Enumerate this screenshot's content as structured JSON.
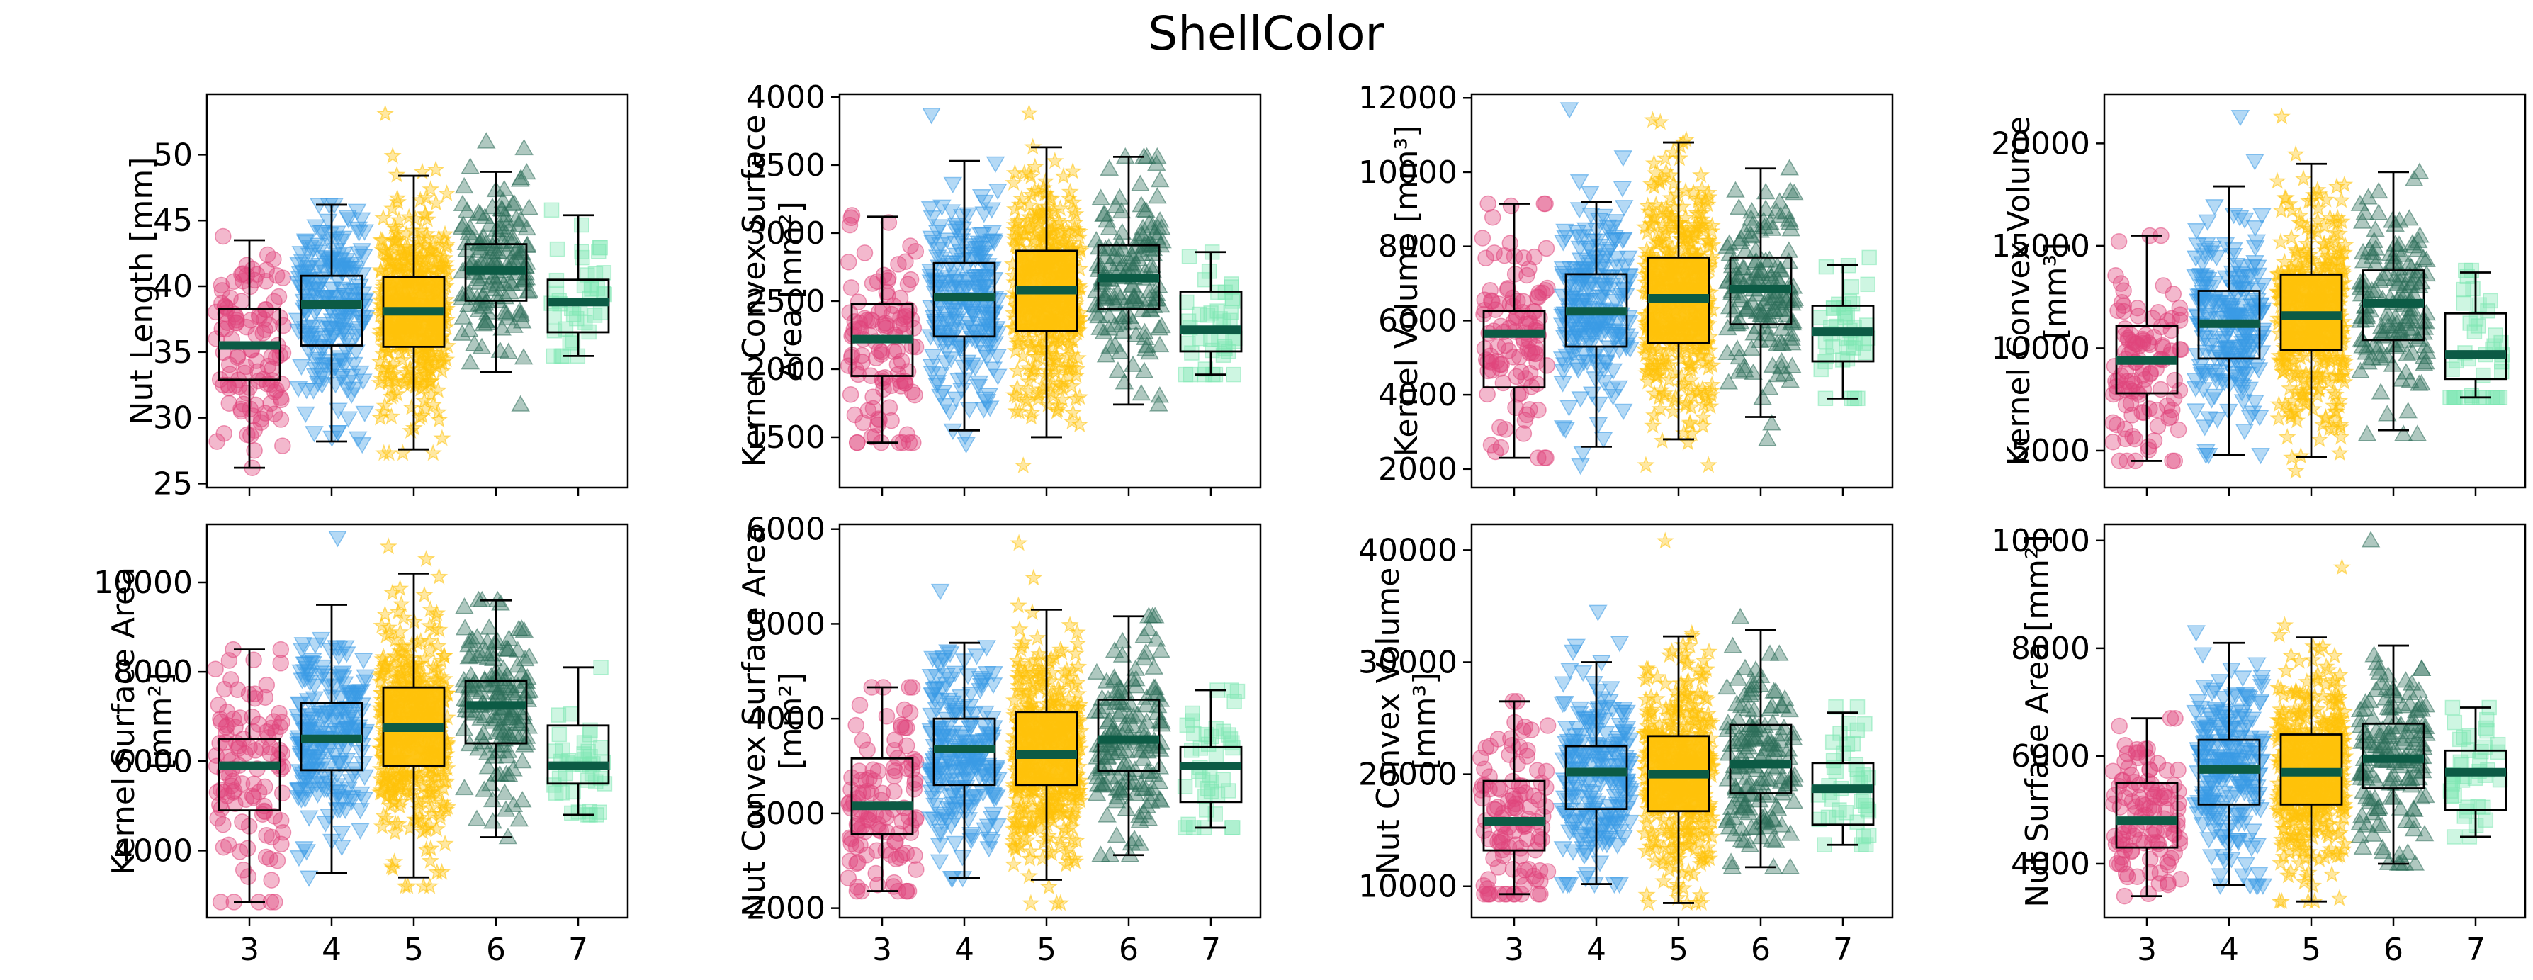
{
  "figure": {
    "title": "ShellColor"
  },
  "chart_data": {
    "type": "box",
    "categories": [
      "3",
      "4",
      "5",
      "6",
      "7"
    ],
    "group_styles": [
      {
        "category": "3",
        "marker": "circle",
        "color": "#e0457b"
      },
      {
        "category": "4",
        "marker": "triangle-down",
        "color": "#3a9ae6"
      },
      {
        "category": "5",
        "marker": "star",
        "color": "#ffc20a"
      },
      {
        "category": "6",
        "marker": "triangle-up",
        "color": "#2e6e5a"
      },
      {
        "category": "7",
        "marker": "square",
        "color": "#7ee8b2"
      }
    ],
    "median_color": "#0c5b45",
    "panels": [
      {
        "id": "nut-length",
        "ylabel_lines": [
          "Nut Length [mm]"
        ],
        "ylim": [
          24.7,
          54.6
        ],
        "yticks": [
          25,
          30,
          35,
          40,
          45,
          50
        ],
        "groups": [
          {
            "n": 110,
            "q1": 32.9,
            "median": 35.5,
            "q3": 38.3,
            "low": 26.2,
            "high": 43.5,
            "pmin": 26.2,
            "pmax": 43.8
          },
          {
            "n": 220,
            "q1": 35.5,
            "median": 38.6,
            "q3": 40.8,
            "low": 28.2,
            "high": 46.2,
            "pmin": 28.0,
            "pmax": 46.2
          },
          {
            "n": 420,
            "q1": 35.4,
            "median": 38.1,
            "q3": 40.7,
            "low": 27.6,
            "high": 48.4,
            "pmin": 27.3,
            "pmax": 53.1
          },
          {
            "n": 150,
            "q1": 38.9,
            "median": 41.2,
            "q3": 43.2,
            "low": 33.5,
            "high": 48.7,
            "pmin": 31.0,
            "pmax": 51.0
          },
          {
            "n": 40,
            "q1": 36.5,
            "median": 38.8,
            "q3": 40.5,
            "low": 34.7,
            "high": 45.4,
            "pmin": 34.7,
            "pmax": 45.8
          }
        ]
      },
      {
        "id": "kernel-convex-surface-area",
        "ylabel_lines": [
          "Kernel Convex Surface",
          "Area [mm²]"
        ],
        "ylim": [
          1130,
          4020
        ],
        "yticks": [
          1500,
          2000,
          2500,
          3000,
          3500,
          4000
        ],
        "groups": [
          {
            "n": 110,
            "q1": 1950,
            "median": 2220,
            "q3": 2480,
            "low": 1460,
            "high": 3120,
            "pmin": 1460,
            "pmax": 3130
          },
          {
            "n": 220,
            "q1": 2240,
            "median": 2530,
            "q3": 2780,
            "low": 1550,
            "high": 3530,
            "pmin": 1450,
            "pmax": 3870
          },
          {
            "n": 420,
            "q1": 2280,
            "median": 2580,
            "q3": 2870,
            "low": 1500,
            "high": 3630,
            "pmin": 1290,
            "pmax": 3880
          },
          {
            "n": 150,
            "q1": 2440,
            "median": 2670,
            "q3": 2910,
            "low": 1740,
            "high": 3560,
            "pmin": 1740,
            "pmax": 3560
          },
          {
            "n": 40,
            "q1": 2130,
            "median": 2290,
            "q3": 2570,
            "low": 1960,
            "high": 2860,
            "pmin": 1960,
            "pmax": 2860
          }
        ]
      },
      {
        "id": "kernel-volume",
        "ylabel_lines": [
          "Kernel Volume [mm³]"
        ],
        "ylim": [
          1500,
          12100
        ],
        "yticks": [
          2000,
          4000,
          6000,
          8000,
          10000,
          12000
        ],
        "groups": [
          {
            "n": 110,
            "q1": 4200,
            "median": 5650,
            "q3": 6250,
            "low": 2300,
            "high": 9150,
            "pmin": 2300,
            "pmax": 9150
          },
          {
            "n": 220,
            "q1": 5300,
            "median": 6250,
            "q3": 7250,
            "low": 2600,
            "high": 9200,
            "pmin": 2100,
            "pmax": 11700
          },
          {
            "n": 420,
            "q1": 5400,
            "median": 6600,
            "q3": 7700,
            "low": 2800,
            "high": 10800,
            "pmin": 2100,
            "pmax": 11400
          },
          {
            "n": 150,
            "q1": 5900,
            "median": 6850,
            "q3": 7700,
            "low": 3400,
            "high": 10100,
            "pmin": 2800,
            "pmax": 10100
          },
          {
            "n": 40,
            "q1": 4900,
            "median": 5700,
            "q3": 6400,
            "low": 3900,
            "high": 7500,
            "pmin": 3900,
            "pmax": 7700
          }
        ]
      },
      {
        "id": "kernel-convex-volume",
        "ylabel_lines": [
          "Kernel Convex Volume",
          "[mm³]"
        ],
        "ylim": [
          3200,
          22400
        ],
        "yticks": [
          5000,
          10000,
          15000,
          20000
        ],
        "groups": [
          {
            "n": 110,
            "q1": 7800,
            "median": 9400,
            "q3": 11100,
            "low": 4500,
            "high": 15500,
            "pmin": 4500,
            "pmax": 15500
          },
          {
            "n": 220,
            "q1": 9500,
            "median": 11200,
            "q3": 12800,
            "low": 4800,
            "high": 17900,
            "pmin": 4800,
            "pmax": 21300
          },
          {
            "n": 420,
            "q1": 9900,
            "median": 11600,
            "q3": 13600,
            "low": 4700,
            "high": 19000,
            "pmin": 4000,
            "pmax": 21300
          },
          {
            "n": 150,
            "q1": 10400,
            "median": 12200,
            "q3": 13800,
            "low": 6000,
            "high": 18600,
            "pmin": 5800,
            "pmax": 18600
          },
          {
            "n": 40,
            "q1": 8500,
            "median": 9700,
            "q3": 11700,
            "low": 7600,
            "high": 13700,
            "pmin": 7600,
            "pmax": 13800
          }
        ]
      },
      {
        "id": "kernel-surface-area",
        "ylabel_lines": [
          "Kernel Surface Area",
          "[mm²]"
        ],
        "ylim": [
          2500,
          11300
        ],
        "yticks": [
          4000,
          6000,
          8000,
          10000
        ],
        "groups": [
          {
            "n": 110,
            "q1": 4900,
            "median": 5900,
            "q3": 6500,
            "low": 2850,
            "high": 8500,
            "pmin": 2850,
            "pmax": 8500
          },
          {
            "n": 220,
            "q1": 5800,
            "median": 6500,
            "q3": 7300,
            "low": 3500,
            "high": 9500,
            "pmin": 3400,
            "pmax": 11000
          },
          {
            "n": 420,
            "q1": 5900,
            "median": 6750,
            "q3": 7650,
            "low": 3400,
            "high": 10200,
            "pmin": 3200,
            "pmax": 10800
          },
          {
            "n": 150,
            "q1": 6400,
            "median": 7250,
            "q3": 7800,
            "low": 4300,
            "high": 9600,
            "pmin": 4300,
            "pmax": 9600
          },
          {
            "n": 40,
            "q1": 5500,
            "median": 5900,
            "q3": 6800,
            "low": 4800,
            "high": 8100,
            "pmin": 4800,
            "pmax": 8100
          }
        ]
      },
      {
        "id": "nut-convex-surface-area",
        "ylabel_lines": [
          "Nut Convex Surface Area",
          "[mm²]"
        ],
        "ylim": [
          1900,
          6050
        ],
        "yticks": [
          2000,
          3000,
          4000,
          5000,
          6000
        ],
        "groups": [
          {
            "n": 110,
            "q1": 2780,
            "median": 3080,
            "q3": 3580,
            "low": 2180,
            "high": 4330,
            "pmin": 2180,
            "pmax": 4330
          },
          {
            "n": 220,
            "q1": 3300,
            "median": 3680,
            "q3": 4000,
            "low": 2320,
            "high": 4800,
            "pmin": 2320,
            "pmax": 5350
          },
          {
            "n": 420,
            "q1": 3300,
            "median": 3620,
            "q3": 4070,
            "low": 2300,
            "high": 5150,
            "pmin": 2050,
            "pmax": 5850
          },
          {
            "n": 150,
            "q1": 3450,
            "median": 3780,
            "q3": 4200,
            "low": 2560,
            "high": 5080,
            "pmin": 2560,
            "pmax": 5080
          },
          {
            "n": 40,
            "q1": 3120,
            "median": 3500,
            "q3": 3700,
            "low": 2850,
            "high": 4300,
            "pmin": 2850,
            "pmax": 4300
          }
        ]
      },
      {
        "id": "nut-convex-volume",
        "ylabel_lines": [
          "Nut Convex Volume",
          "[mm³]"
        ],
        "ylim": [
          7200,
          42300
        ],
        "yticks": [
          10000,
          20000,
          30000,
          40000
        ],
        "groups": [
          {
            "n": 110,
            "q1": 13200,
            "median": 15800,
            "q3": 19400,
            "low": 9300,
            "high": 26500,
            "pmin": 9300,
            "pmax": 26500
          },
          {
            "n": 220,
            "q1": 16900,
            "median": 20200,
            "q3": 22500,
            "low": 10200,
            "high": 30000,
            "pmin": 10200,
            "pmax": 34500
          },
          {
            "n": 420,
            "q1": 16700,
            "median": 20000,
            "q3": 23400,
            "low": 8500,
            "high": 32300,
            "pmin": 8500,
            "pmax": 40800
          },
          {
            "n": 150,
            "q1": 18300,
            "median": 20900,
            "q3": 24400,
            "low": 11700,
            "high": 32900,
            "pmin": 11700,
            "pmax": 34000
          },
          {
            "n": 40,
            "q1": 15500,
            "median": 18700,
            "q3": 21000,
            "low": 13700,
            "high": 25500,
            "pmin": 13700,
            "pmax": 26000
          }
        ]
      },
      {
        "id": "nut-surface-area",
        "ylabel_lines": [
          "Nut Surface Area [mm²]"
        ],
        "ylim": [
          3000,
          10300
        ],
        "yticks": [
          4000,
          6000,
          8000,
          10000
        ],
        "groups": [
          {
            "n": 110,
            "q1": 4300,
            "median": 4800,
            "q3": 5500,
            "low": 3400,
            "high": 6700,
            "pmin": 3400,
            "pmax": 6700
          },
          {
            "n": 220,
            "q1": 5100,
            "median": 5750,
            "q3": 6300,
            "low": 3600,
            "high": 8100,
            "pmin": 3600,
            "pmax": 8300
          },
          {
            "n": 420,
            "q1": 5100,
            "median": 5700,
            "q3": 6400,
            "low": 3300,
            "high": 8200,
            "pmin": 3300,
            "pmax": 9500
          },
          {
            "n": 150,
            "q1": 5400,
            "median": 5950,
            "q3": 6600,
            "low": 4000,
            "high": 8050,
            "pmin": 4000,
            "pmax": 10000
          },
          {
            "n": 40,
            "q1": 5000,
            "median": 5700,
            "q3": 6100,
            "low": 4500,
            "high": 6900,
            "pmin": 4500,
            "pmax": 6900
          }
        ]
      }
    ]
  }
}
